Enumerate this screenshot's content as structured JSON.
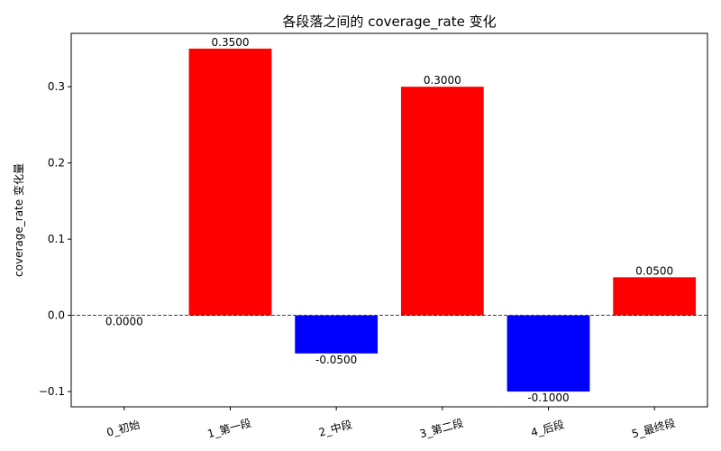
{
  "chart_data": {
    "type": "bar",
    "title": "各段落之间的 coverage_rate 变化",
    "xlabel": "",
    "ylabel": "coverage_rate 变化量",
    "categories": [
      "0_初始",
      "1_第一段",
      "2_中段",
      "3_第二段",
      "4_后段",
      "5_最终段"
    ],
    "values": [
      0.0,
      0.35,
      -0.05,
      0.3,
      -0.1,
      0.05
    ],
    "value_labels": [
      "0.0000",
      "0.3500",
      "-0.0500",
      "0.3000",
      "-0.1000",
      "0.0500"
    ],
    "ylim": [
      -0.12,
      0.37
    ],
    "yticks": [
      -0.1,
      0.0,
      0.1,
      0.2,
      0.3
    ],
    "ytick_labels": [
      "−0.1",
      "0.0",
      "0.1",
      "0.2",
      "0.3"
    ],
    "grid": false,
    "zero_line": true,
    "colors": {
      "positive": "#ff0000",
      "negative": "#0000ff",
      "zero_line": "#000000"
    }
  }
}
